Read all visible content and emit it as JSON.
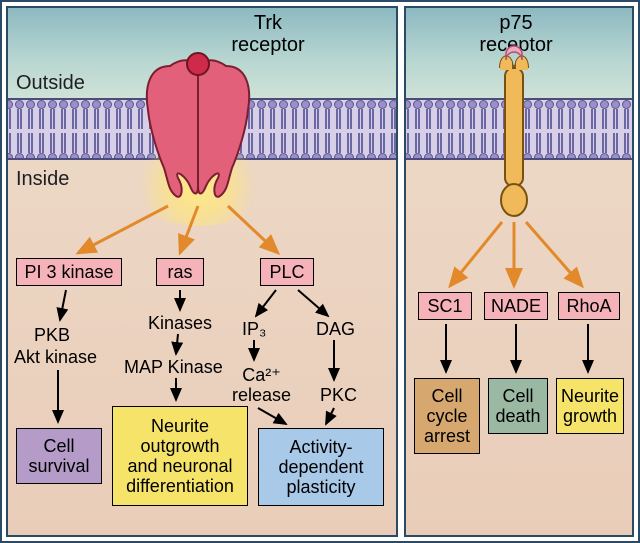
{
  "labels": {
    "outside": "Outside",
    "inside": "Inside"
  },
  "left": {
    "title": "Trk\nreceptor",
    "pathway_a": {
      "target": "PI 3 kinase",
      "mid1": "PKB",
      "mid2": "Akt kinase",
      "outcome": "Cell\nsurvival"
    },
    "pathway_b": {
      "target": "ras",
      "mid1": "Kinases",
      "mid2": "MAP Kinase",
      "outcome": "Neurite\noutgrowth\nand neuronal\ndifferentiation"
    },
    "pathway_c": {
      "target": "PLC",
      "branch1": {
        "l1": "IP₃",
        "l2": "Ca²⁺\nrelease"
      },
      "branch2": {
        "l1": "DAG",
        "l2": "PKC"
      },
      "outcome": "Activity-\ndependent\nplasticity"
    }
  },
  "right": {
    "title": "p75\nreceptor",
    "a": {
      "target": "SC1",
      "outcome": "Cell\ncycle\narrest"
    },
    "b": {
      "target": "NADE",
      "outcome": "Cell\ndeath"
    },
    "c": {
      "target": "RhoA",
      "outcome": "Neurite\ngrowth"
    }
  },
  "colors": {
    "pink": "#f6b2b9",
    "yellow": "#f6e36a",
    "blue": "#a9c9e8",
    "purple": "#b49bc8",
    "tan": "#d7a770",
    "teal": "#9bb8a3",
    "orange_arrow": "#e28a2b",
    "receptor_trk": "#e3607a",
    "receptor_p75": "#f0b95a",
    "ligand_pink": "#f2a9c0"
  },
  "style": {
    "font": "Arial",
    "title_fontsize": 20,
    "label_fontsize": 20,
    "box_fontsize": 18,
    "text_fontsize": 18,
    "border": "#000000"
  }
}
